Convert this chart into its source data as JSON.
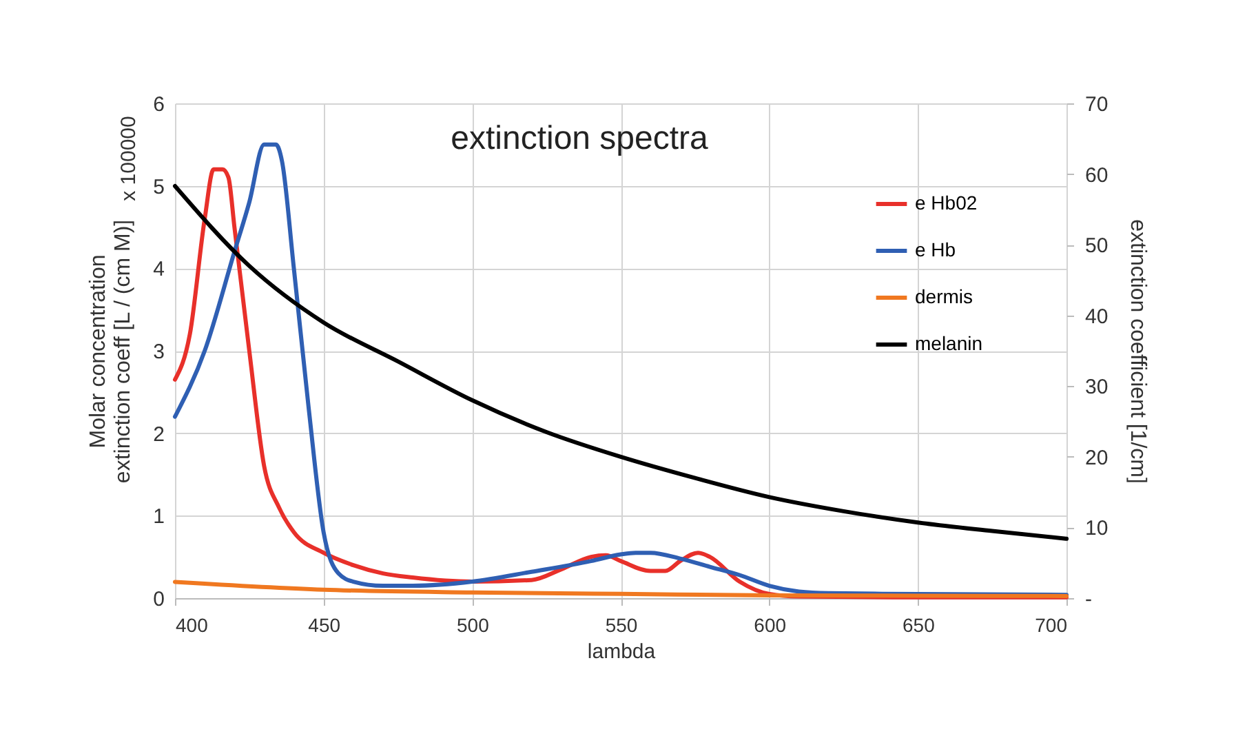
{
  "chart_data": {
    "type": "line",
    "title": "extinction spectra",
    "xlabel": "lambda",
    "ylabel": "Molar concentration extinction coeff [L / (cm M)]",
    "y2label": "extinction coefficient [1/cm]",
    "annotations": [
      "x 100000"
    ],
    "xlim": [
      400,
      700
    ],
    "xticks": [
      400,
      450,
      500,
      550,
      600,
      650,
      700
    ],
    "ylim": [
      0,
      6
    ],
    "yticks": [
      0,
      1,
      2,
      3,
      4,
      5,
      6
    ],
    "y2lim": [
      0,
      70
    ],
    "y2ticks": [
      {
        "value": 0,
        "label": "-"
      },
      10,
      20,
      30,
      40,
      50,
      60,
      70
    ],
    "grid": true,
    "legend": "top right",
    "marker": "none",
    "line_style": "solid",
    "series": [
      {
        "name": "e Hb02",
        "color": "#e8302a",
        "x": [
          400,
          405,
          410,
          413,
          416,
          418,
          420,
          425,
          430,
          435,
          440,
          450,
          460,
          470,
          480,
          500,
          520,
          530,
          540,
          545,
          550,
          560,
          565,
          570,
          576,
          580,
          590,
          600,
          610,
          650,
          700
        ],
        "values": [
          2.65,
          3.2,
          4.6,
          5.2,
          5.2,
          5.1,
          4.5,
          3.0,
          1.6,
          1.1,
          0.8,
          0.55,
          0.4,
          0.3,
          0.25,
          0.2,
          0.22,
          0.35,
          0.5,
          0.52,
          0.45,
          0.33,
          0.33,
          0.45,
          0.55,
          0.5,
          0.2,
          0.05,
          0.02,
          0.01,
          0.01
        ]
      },
      {
        "name": "e Hb",
        "color": "#2f5fb3",
        "x": [
          400,
          410,
          420,
          425,
          430,
          434,
          436,
          440,
          445,
          450,
          455,
          460,
          470,
          480,
          500,
          520,
          540,
          550,
          555,
          560,
          570,
          580,
          590,
          600,
          610,
          620,
          650,
          700
        ],
        "values": [
          2.2,
          3.0,
          4.2,
          4.8,
          5.5,
          5.5,
          5.3,
          4.0,
          2.3,
          0.8,
          0.3,
          0.2,
          0.15,
          0.15,
          0.2,
          0.32,
          0.45,
          0.53,
          0.55,
          0.55,
          0.48,
          0.38,
          0.28,
          0.15,
          0.08,
          0.06,
          0.05,
          0.04
        ]
      },
      {
        "name": "dermis",
        "color": "#f07820",
        "axis": "y2",
        "x": [
          400,
          450,
          500,
          550,
          600,
          650,
          700
        ],
        "values": [
          2.3,
          1.2,
          0.8,
          0.6,
          0.4,
          0.35,
          0.3
        ]
      },
      {
        "name": "melanin",
        "color": "#000000",
        "axis": "y2",
        "x": [
          400,
          425,
          450,
          475,
          500,
          525,
          550,
          575,
          600,
          625,
          650,
          675,
          700
        ],
        "values": [
          58.3,
          47,
          39,
          33.5,
          28,
          23.5,
          20,
          17,
          14.3,
          12.3,
          10.7,
          9.5,
          8.4
        ]
      }
    ]
  }
}
